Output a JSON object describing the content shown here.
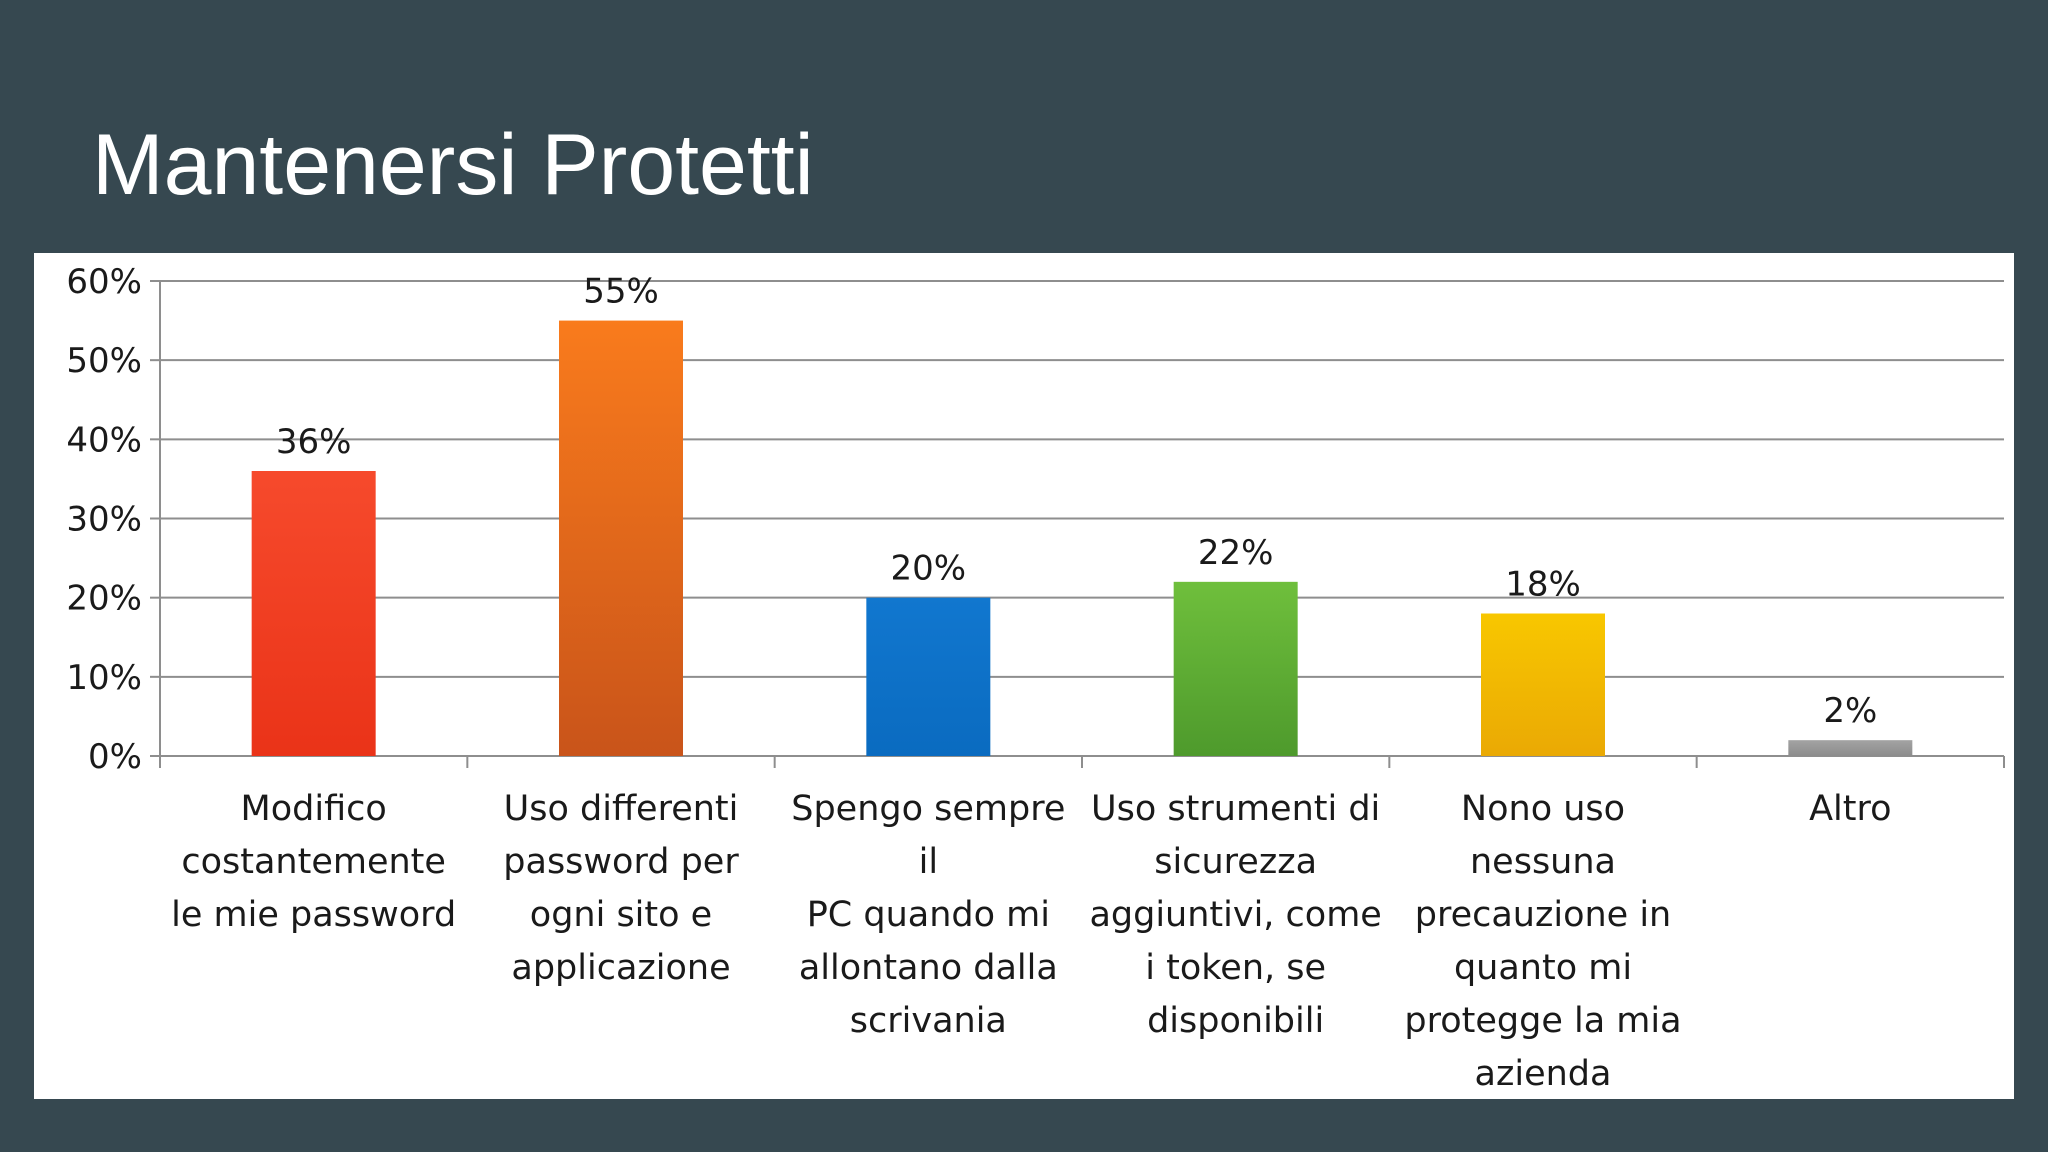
{
  "slide": {
    "title": "Mantenersi Protetti"
  },
  "chart_data": {
    "type": "bar",
    "categories": [
      "Modifico costantemente le mie password",
      "Uso differenti password per ogni sito e applicazione",
      "Spengo sempre il PC quando mi allontano dalla scrivania",
      "Uso strumenti di sicurezza aggiuntivi, come i token, se disponibili",
      "Nono uso nessuna precauzione in quanto mi protegge la mia azienda",
      "Altro"
    ],
    "category_label_lines": [
      "Modifico\ncostantemente\nle mie password",
      "Uso differenti\npassword per\nogni sito e\napplicazione",
      "Spengo sempre il\nPC quando mi\nallontano dalla\nscrivania",
      "Uso strumenti di\nsicurezza\naggiuntivi, come\ni token, se\ndisponibili",
      "Nono uso\nnessuna\nprecauzione in\nquanto mi\nprotegge la mia\nazienda",
      "Altro"
    ],
    "values": [
      36,
      55,
      20,
      22,
      18,
      2
    ],
    "value_labels": [
      "36%",
      "55%",
      "20%",
      "22%",
      "18%",
      "2%"
    ],
    "ylim": [
      0,
      60
    ],
    "y_ticks": [
      0,
      10,
      20,
      30,
      40,
      50,
      60
    ],
    "y_tick_labels": [
      "0%",
      "10%",
      "20%",
      "30%",
      "40%",
      "50%",
      "60%"
    ],
    "colors": [
      {
        "top": "#f64a2c",
        "bottom": "#ea3318"
      },
      {
        "top": "#f97b1c",
        "bottom": "#c9541a"
      },
      {
        "top": "#1177cf",
        "bottom": "#0a6bc0"
      },
      {
        "top": "#6fbf3c",
        "bottom": "#4e9a2c"
      },
      {
        "top": "#f8c700",
        "bottom": "#eaa904"
      },
      {
        "top": "#a3a3a3",
        "bottom": "#8c8c8c"
      }
    ],
    "grid": true,
    "legend": "none",
    "title": "",
    "xlabel": "",
    "ylabel": ""
  }
}
